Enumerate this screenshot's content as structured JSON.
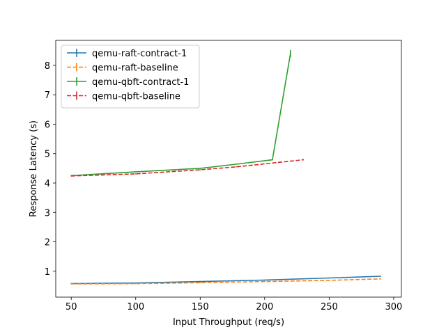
{
  "chart_data": {
    "type": "line",
    "title": "",
    "xlabel": "Input Throughput (req/s)",
    "ylabel": "Response Latency (s)",
    "xlim": [
      38,
      306
    ],
    "ylim": [
      0.12,
      8.85
    ],
    "xticks": [
      50,
      100,
      150,
      200,
      250,
      300
    ],
    "yticks": [
      1,
      2,
      3,
      4,
      5,
      6,
      7,
      8
    ],
    "grid": false,
    "legend_position": "top-left",
    "series": [
      {
        "name": "qemu-raft-contract-1",
        "color": "#1f77b4",
        "linestyle": "solid",
        "x": [
          50,
          100,
          150,
          200,
          250,
          290
        ],
        "y": [
          0.58,
          0.6,
          0.65,
          0.7,
          0.77,
          0.83
        ],
        "yerr": [
          0,
          0,
          0,
          0,
          0,
          0
        ]
      },
      {
        "name": "qemu-raft-baseline",
        "color": "#ff7f0e",
        "linestyle": "dashed",
        "x": [
          50,
          100,
          150,
          200,
          250,
          290
        ],
        "y": [
          0.57,
          0.58,
          0.61,
          0.65,
          0.69,
          0.74
        ],
        "yerr": [
          0,
          0,
          0,
          0,
          0,
          0
        ]
      },
      {
        "name": "qemu-qbft-contract-1",
        "color": "#2ca02c",
        "linestyle": "solid",
        "x": [
          50,
          100,
          150,
          180,
          206,
          220
        ],
        "y": [
          4.25,
          4.38,
          4.5,
          4.65,
          4.79,
          8.4
        ],
        "yerr": [
          0,
          0,
          0,
          0,
          0,
          0.12
        ]
      },
      {
        "name": "qemu-qbft-baseline",
        "color": "#d62728",
        "linestyle": "dashed",
        "x": [
          50,
          100,
          150,
          178,
          230
        ],
        "y": [
          4.24,
          4.31,
          4.45,
          4.55,
          4.79
        ],
        "yerr": [
          0,
          0,
          0,
          0,
          0
        ]
      }
    ]
  }
}
